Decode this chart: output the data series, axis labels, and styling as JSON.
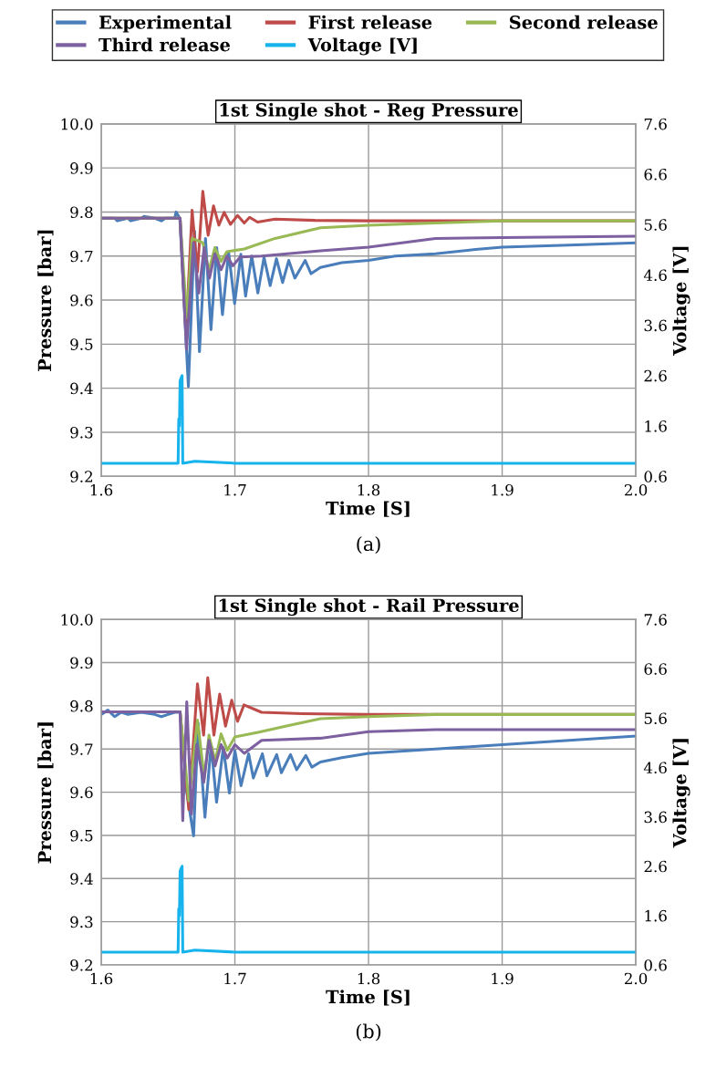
{
  "chart_data": [
    {
      "type": "line",
      "title": "1st Single shot - Reg Pressure",
      "xlabel": "Time [S]",
      "ylabel": "Pressure [bar]",
      "y2label": "Voltage [V]",
      "annotations": [
        "(a)"
      ],
      "legend": "top",
      "grid": true,
      "xlim": [
        1.6,
        2.0
      ],
      "xticks": [
        1.6,
        1.7,
        1.8,
        1.9,
        {
          "value": 2.0,
          "label": "2.0"
        }
      ],
      "ylim": [
        9.2,
        10.0
      ],
      "yticks": [
        9.2,
        9.3,
        9.4,
        9.5,
        9.6,
        9.7,
        9.8,
        9.9,
        {
          "value": 10.0,
          "label": "10.0"
        }
      ],
      "y2lim": [
        0.6,
        7.6
      ],
      "y2ticks": [
        0.6,
        1.6,
        2.6,
        3.6,
        4.6,
        5.6,
        6.6,
        7.6
      ],
      "series": [
        {
          "name": "Experimental",
          "color": "#4a7ebb",
          "x": [
            1.6,
            1.61,
            1.612,
            1.62,
            1.622,
            1.63,
            1.632,
            1.64,
            1.645,
            1.648,
            1.655,
            1.656,
            1.6588,
            1.6652,
            1.6698,
            1.6735,
            1.678,
            1.6821,
            1.6864,
            1.6907,
            1.6953,
            1.6998,
            1.7045,
            1.708,
            1.7126,
            1.7172,
            1.7218,
            1.7264,
            1.7311,
            1.7357,
            1.7403,
            1.7449,
            1.7526,
            1.757,
            1.764,
            1.78,
            1.8,
            1.82,
            1.85,
            1.88,
            1.9,
            1.95,
            2.0
          ],
          "values": [
            9.786,
            9.786,
            9.78,
            9.786,
            9.78,
            9.786,
            9.79,
            9.786,
            9.78,
            9.786,
            9.786,
            9.8,
            9.786,
            9.404,
            9.757,
            9.483,
            9.74,
            9.533,
            9.719,
            9.567,
            9.709,
            9.592,
            9.704,
            9.609,
            9.7,
            9.616,
            9.697,
            9.633,
            9.694,
            9.64,
            9.69,
            9.65,
            9.69,
            9.66,
            9.674,
            9.685,
            9.69,
            9.7,
            9.705,
            9.715,
            9.72,
            9.725,
            9.73
          ]
        },
        {
          "name": "First release",
          "color": "#be4b48",
          "x": [
            1.6,
            1.659,
            1.6634,
            1.668,
            1.672,
            1.676,
            1.68,
            1.684,
            1.688,
            1.692,
            1.6967,
            1.702,
            1.707,
            1.711,
            1.717,
            1.73,
            1.76,
            1.8,
            1.9,
            2.0
          ],
          "values": [
            9.786,
            9.786,
            9.523,
            9.804,
            9.664,
            9.847,
            9.747,
            9.814,
            9.77,
            9.799,
            9.772,
            9.792,
            9.775,
            9.788,
            9.777,
            9.784,
            9.781,
            9.78,
            9.78,
            9.78
          ]
        },
        {
          "name": "Second release",
          "color": "#98b954",
          "x": [
            1.6,
            1.659,
            1.664,
            1.668,
            1.676,
            1.6806,
            1.685,
            1.6897,
            1.694,
            1.707,
            1.73,
            1.764,
            1.8,
            1.85,
            1.9,
            2.0
          ],
          "values": [
            9.786,
            9.786,
            9.56,
            9.74,
            9.73,
            9.667,
            9.719,
            9.688,
            9.71,
            9.716,
            9.74,
            9.764,
            9.77,
            9.775,
            9.78,
            9.78
          ]
        },
        {
          "name": "Third release",
          "color": "#7d60a0",
          "x": [
            1.6,
            1.659,
            1.6638,
            1.669,
            1.673,
            1.677,
            1.681,
            1.685,
            1.6897,
            1.694,
            1.6985,
            1.704,
            1.72,
            1.764,
            1.8,
            1.85,
            1.9,
            2.0
          ],
          "values": [
            9.786,
            9.786,
            9.488,
            9.73,
            9.616,
            9.719,
            9.65,
            9.705,
            9.669,
            9.7,
            9.678,
            9.698,
            9.7,
            9.712,
            9.72,
            9.74,
            9.742,
            9.745
          ]
        },
        {
          "name": "Voltage [V]",
          "color": "#17b3ec",
          "axis": "y2",
          "x": [
            1.6,
            1.62,
            1.64,
            1.6575,
            1.658,
            1.6585,
            1.659,
            1.6605,
            1.661,
            1.67,
            1.7,
            1.75,
            1.8,
            1.85,
            1.9,
            1.95,
            2.0
          ],
          "values": [
            0.86,
            0.86,
            0.86,
            0.86,
            1.74,
            1.6,
            2.5,
            2.6,
            0.86,
            0.9,
            0.86,
            0.86,
            0.86,
            0.86,
            0.86,
            0.86,
            0.86
          ]
        }
      ]
    },
    {
      "type": "line",
      "title": "1st Single shot - Rail Pressure",
      "xlabel": "Time [S]",
      "ylabel": "Pressure [bar]",
      "y2label": "Voltage [V]",
      "annotations": [
        "(b)"
      ],
      "grid": true,
      "xlim": [
        1.6,
        2.0
      ],
      "xticks": [
        1.6,
        1.7,
        1.8,
        1.9,
        {
          "value": 2.0,
          "label": "2.0"
        }
      ],
      "ylim": [
        9.2,
        10.0
      ],
      "yticks": [
        9.2,
        9.3,
        9.4,
        9.5,
        9.6,
        9.7,
        9.8,
        9.9,
        {
          "value": 10.0,
          "label": "10.0"
        }
      ],
      "y2lim": [
        0.6,
        7.6
      ],
      "y2ticks": [
        0.6,
        1.6,
        2.6,
        3.6,
        4.6,
        5.6,
        6.6,
        7.6
      ],
      "series": [
        {
          "name": "Experimental",
          "color": "#4a7ebb",
          "x": [
            1.6,
            1.605,
            1.61,
            1.615,
            1.62,
            1.63,
            1.64,
            1.645,
            1.65,
            1.655,
            1.659,
            1.664,
            1.6691,
            1.6725,
            1.6776,
            1.6822,
            1.6863,
            1.6913,
            1.6959,
            1.7,
            1.7046,
            1.7103,
            1.7138,
            1.7206,
            1.724,
            1.7313,
            1.7348,
            1.7416,
            1.7462,
            1.7531,
            1.7576,
            1.764,
            1.78,
            1.8,
            1.85,
            1.9,
            1.95,
            2.0
          ],
          "values": [
            9.78,
            9.79,
            9.775,
            9.785,
            9.78,
            9.785,
            9.78,
            9.775,
            9.78,
            9.785,
            9.785,
            9.6,
            9.499,
            9.76,
            9.542,
            9.71,
            9.577,
            9.703,
            9.598,
            9.696,
            9.615,
            9.689,
            9.633,
            9.689,
            9.638,
            9.687,
            9.645,
            9.687,
            9.652,
            9.685,
            9.658,
            9.67,
            9.68,
            9.69,
            9.7,
            9.71,
            9.72,
            9.73
          ]
        },
        {
          "name": "First release",
          "color": "#be4b48",
          "x": [
            1.6,
            1.659,
            1.6655,
            1.672,
            1.6766,
            1.6797,
            1.6843,
            1.6886,
            1.693,
            1.6976,
            1.702,
            1.7068,
            1.72,
            1.75,
            1.8,
            1.85,
            1.9,
            2.0
          ],
          "values": [
            9.786,
            9.786,
            9.56,
            9.851,
            9.732,
            9.865,
            9.732,
            9.827,
            9.753,
            9.813,
            9.764,
            9.802,
            9.785,
            9.782,
            9.78,
            9.78,
            9.78,
            9.78
          ]
        },
        {
          "name": "Second release",
          "color": "#98b954",
          "x": [
            1.6,
            1.659,
            1.6655,
            1.672,
            1.6771,
            1.6806,
            1.6852,
            1.6897,
            1.6943,
            1.7,
            1.718,
            1.741,
            1.764,
            1.8,
            1.85,
            1.9,
            2.0
          ],
          "values": [
            9.786,
            9.786,
            9.58,
            9.767,
            9.633,
            9.732,
            9.672,
            9.735,
            9.697,
            9.728,
            9.739,
            9.755,
            9.77,
            9.775,
            9.78,
            9.78,
            9.78
          ]
        },
        {
          "name": "Third release",
          "color": "#7d60a0",
          "x": [
            1.6,
            1.659,
            1.661,
            1.664,
            1.6675,
            1.6714,
            1.6767,
            1.6806,
            1.6852,
            1.6897,
            1.6943,
            1.7,
            1.707,
            1.72,
            1.764,
            1.8,
            1.85,
            1.9,
            2.0
          ],
          "values": [
            9.786,
            9.786,
            9.534,
            9.809,
            9.549,
            9.71,
            9.623,
            9.72,
            9.661,
            9.71,
            9.679,
            9.71,
            9.69,
            9.72,
            9.725,
            9.74,
            9.745,
            9.745,
            9.745
          ]
        },
        {
          "color": "#17b3ec",
          "axis": "y2",
          "x": [
            1.6,
            1.62,
            1.64,
            1.6575,
            1.658,
            1.6585,
            1.659,
            1.6605,
            1.661,
            1.67,
            1.7,
            1.75,
            1.8,
            1.85,
            1.9,
            1.95,
            2.0
          ],
          "values": [
            0.86,
            0.86,
            0.86,
            0.86,
            1.74,
            1.6,
            2.5,
            2.6,
            0.86,
            0.9,
            0.86,
            0.86,
            0.86,
            0.86,
            0.86,
            0.86,
            0.86
          ]
        }
      ]
    }
  ]
}
